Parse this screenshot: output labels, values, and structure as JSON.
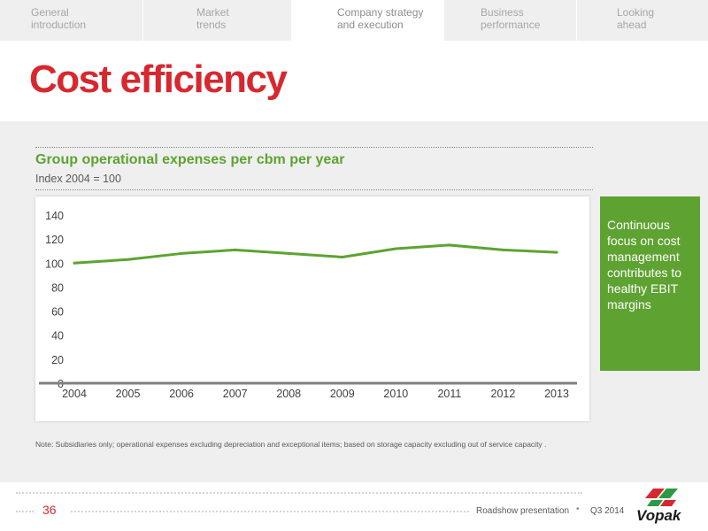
{
  "nav": {
    "tabs": [
      {
        "label": "General\nintroduction",
        "active": false
      },
      {
        "label": "Market\ntrends",
        "active": false
      },
      {
        "label": "Company strategy\nand execution",
        "active": true
      },
      {
        "label": "Business\nperformance",
        "active": false
      },
      {
        "label": "Looking\nahead",
        "active": false
      }
    ]
  },
  "page": {
    "title": "Cost efficiency"
  },
  "chart_data": {
    "type": "line",
    "title": "Group operational expenses per cbm per year",
    "subtitle": "Index 2004 = 100",
    "x": [
      "2004",
      "2005",
      "2006",
      "2007",
      "2008",
      "2009",
      "2010",
      "2011",
      "2012",
      "2013"
    ],
    "series": [
      {
        "values": [
          100,
          103,
          108,
          111,
          108,
          105,
          112,
          115,
          111,
          109
        ],
        "color": "#5ea331"
      }
    ],
    "ylim": [
      0,
      140
    ],
    "yticks": [
      0,
      20,
      40,
      60,
      80,
      100,
      120,
      140
    ],
    "xlabel": "",
    "ylabel": "",
    "grid": false,
    "legend": "none"
  },
  "callout": {
    "text": "Continuous focus on cost management contributes to healthy EBIT margins"
  },
  "footnote": "Note: Subsidiaries only; operational expenses excluding depreciation and exceptional items; based on storage capacity excluding out of service capacity .",
  "footer": {
    "page_number": "36",
    "presentation": "Roadshow presentation",
    "bullet": "•",
    "period": "Q3 2014",
    "logo_text": "Vopak"
  },
  "colors": {
    "accent_red": "#d7282f",
    "accent_green": "#5ea331"
  }
}
